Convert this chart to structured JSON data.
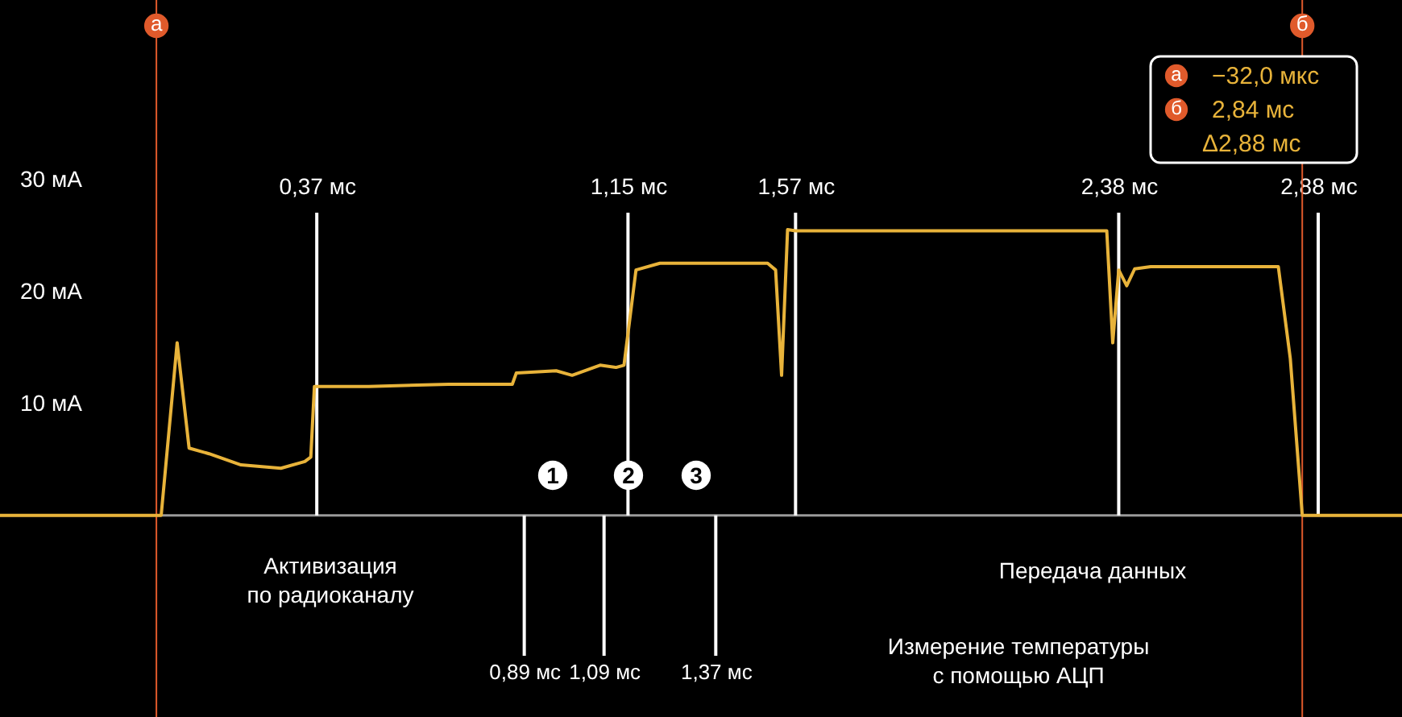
{
  "chart_data": {
    "type": "line",
    "grid": false,
    "marker": "none",
    "xlim": [
      -0.424,
      3.09
    ],
    "ylim": [
      -18,
      46
    ],
    "x2lim": [
      -0.424,
      3.09
    ],
    "xticks": [
      {
        "value": 0.89,
        "label": "0,89 мс"
      },
      {
        "value": 1.09,
        "label": "1,09 мс"
      },
      {
        "value": 1.37,
        "label": "1,37 мс"
      }
    ],
    "x2ticks": [
      {
        "value": 0.37,
        "label": "0,37 мс"
      },
      {
        "value": 1.15,
        "label": "1,15 мс"
      },
      {
        "value": 1.57,
        "label": "1,57 мс"
      },
      {
        "value": 2.38,
        "label": "2,38 мс"
      },
      {
        "value": 2.88,
        "label": "2,88 мс"
      }
    ],
    "yticks": [
      {
        "value": 10,
        "label": "10 мА"
      },
      {
        "value": 20,
        "label": "20 мА"
      },
      {
        "value": 30,
        "label": "30 мА"
      }
    ],
    "series": [
      {
        "color": "#e8b33a",
        "x": [
          -0.424,
          -0.02,
          0.02,
          0.05,
          0.1,
          0.18,
          0.28,
          0.34,
          0.355,
          0.364,
          0.5,
          0.7,
          0.86,
          0.87,
          0.97,
          1.01,
          1.08,
          1.12,
          1.14,
          1.17,
          1.23,
          1.5,
          1.52,
          1.535,
          1.55,
          1.57,
          1.6,
          2.35,
          2.365,
          2.38,
          2.4,
          2.42,
          2.46,
          2.78,
          2.81,
          2.84,
          3.09
        ],
        "values": [
          0,
          0,
          15.4,
          6,
          5.5,
          4.5,
          4.2,
          4.8,
          5.2,
          11.5,
          11.5,
          11.7,
          11.7,
          12.7,
          12.9,
          12.5,
          13.4,
          13.2,
          13.4,
          21.9,
          22.5,
          22.5,
          21.9,
          12.5,
          25.5,
          25.4,
          25.4,
          25.4,
          15.4,
          21.9,
          20.5,
          22,
          22.2,
          22.2,
          14,
          0,
          0
        ]
      }
    ],
    "ref_lines": [
      {
        "axis": "x",
        "value": -0.032,
        "label": "а",
        "color": "#e05a2b"
      },
      {
        "axis": "x",
        "value": 2.84,
        "label": "б",
        "color": "#e05a2b"
      },
      {
        "axis": "x2",
        "value": 0.37,
        "color": "#ffffff"
      },
      {
        "axis": "x2",
        "value": 1.15,
        "color": "#ffffff"
      },
      {
        "axis": "x2",
        "value": 1.57,
        "color": "#ffffff"
      },
      {
        "axis": "x2",
        "value": 2.38,
        "color": "#ffffff"
      },
      {
        "axis": "x2",
        "value": 2.88,
        "color": "#ffffff"
      },
      {
        "axis": "x",
        "value": 0.89,
        "color": "#ffffff"
      },
      {
        "axis": "x",
        "value": 1.09,
        "color": "#ffffff"
      },
      {
        "axis": "x",
        "value": 1.37,
        "color": "#ffffff"
      }
    ],
    "annotations": [
      "Активизация\nпо радиоканалу",
      "Передача данных",
      "Измерение температуры\nс помощью АЦП",
      "1",
      "2",
      "3",
      "−32,0 мкс",
      "2,84 мс",
      "Δ2,88 мс"
    ]
  }
}
